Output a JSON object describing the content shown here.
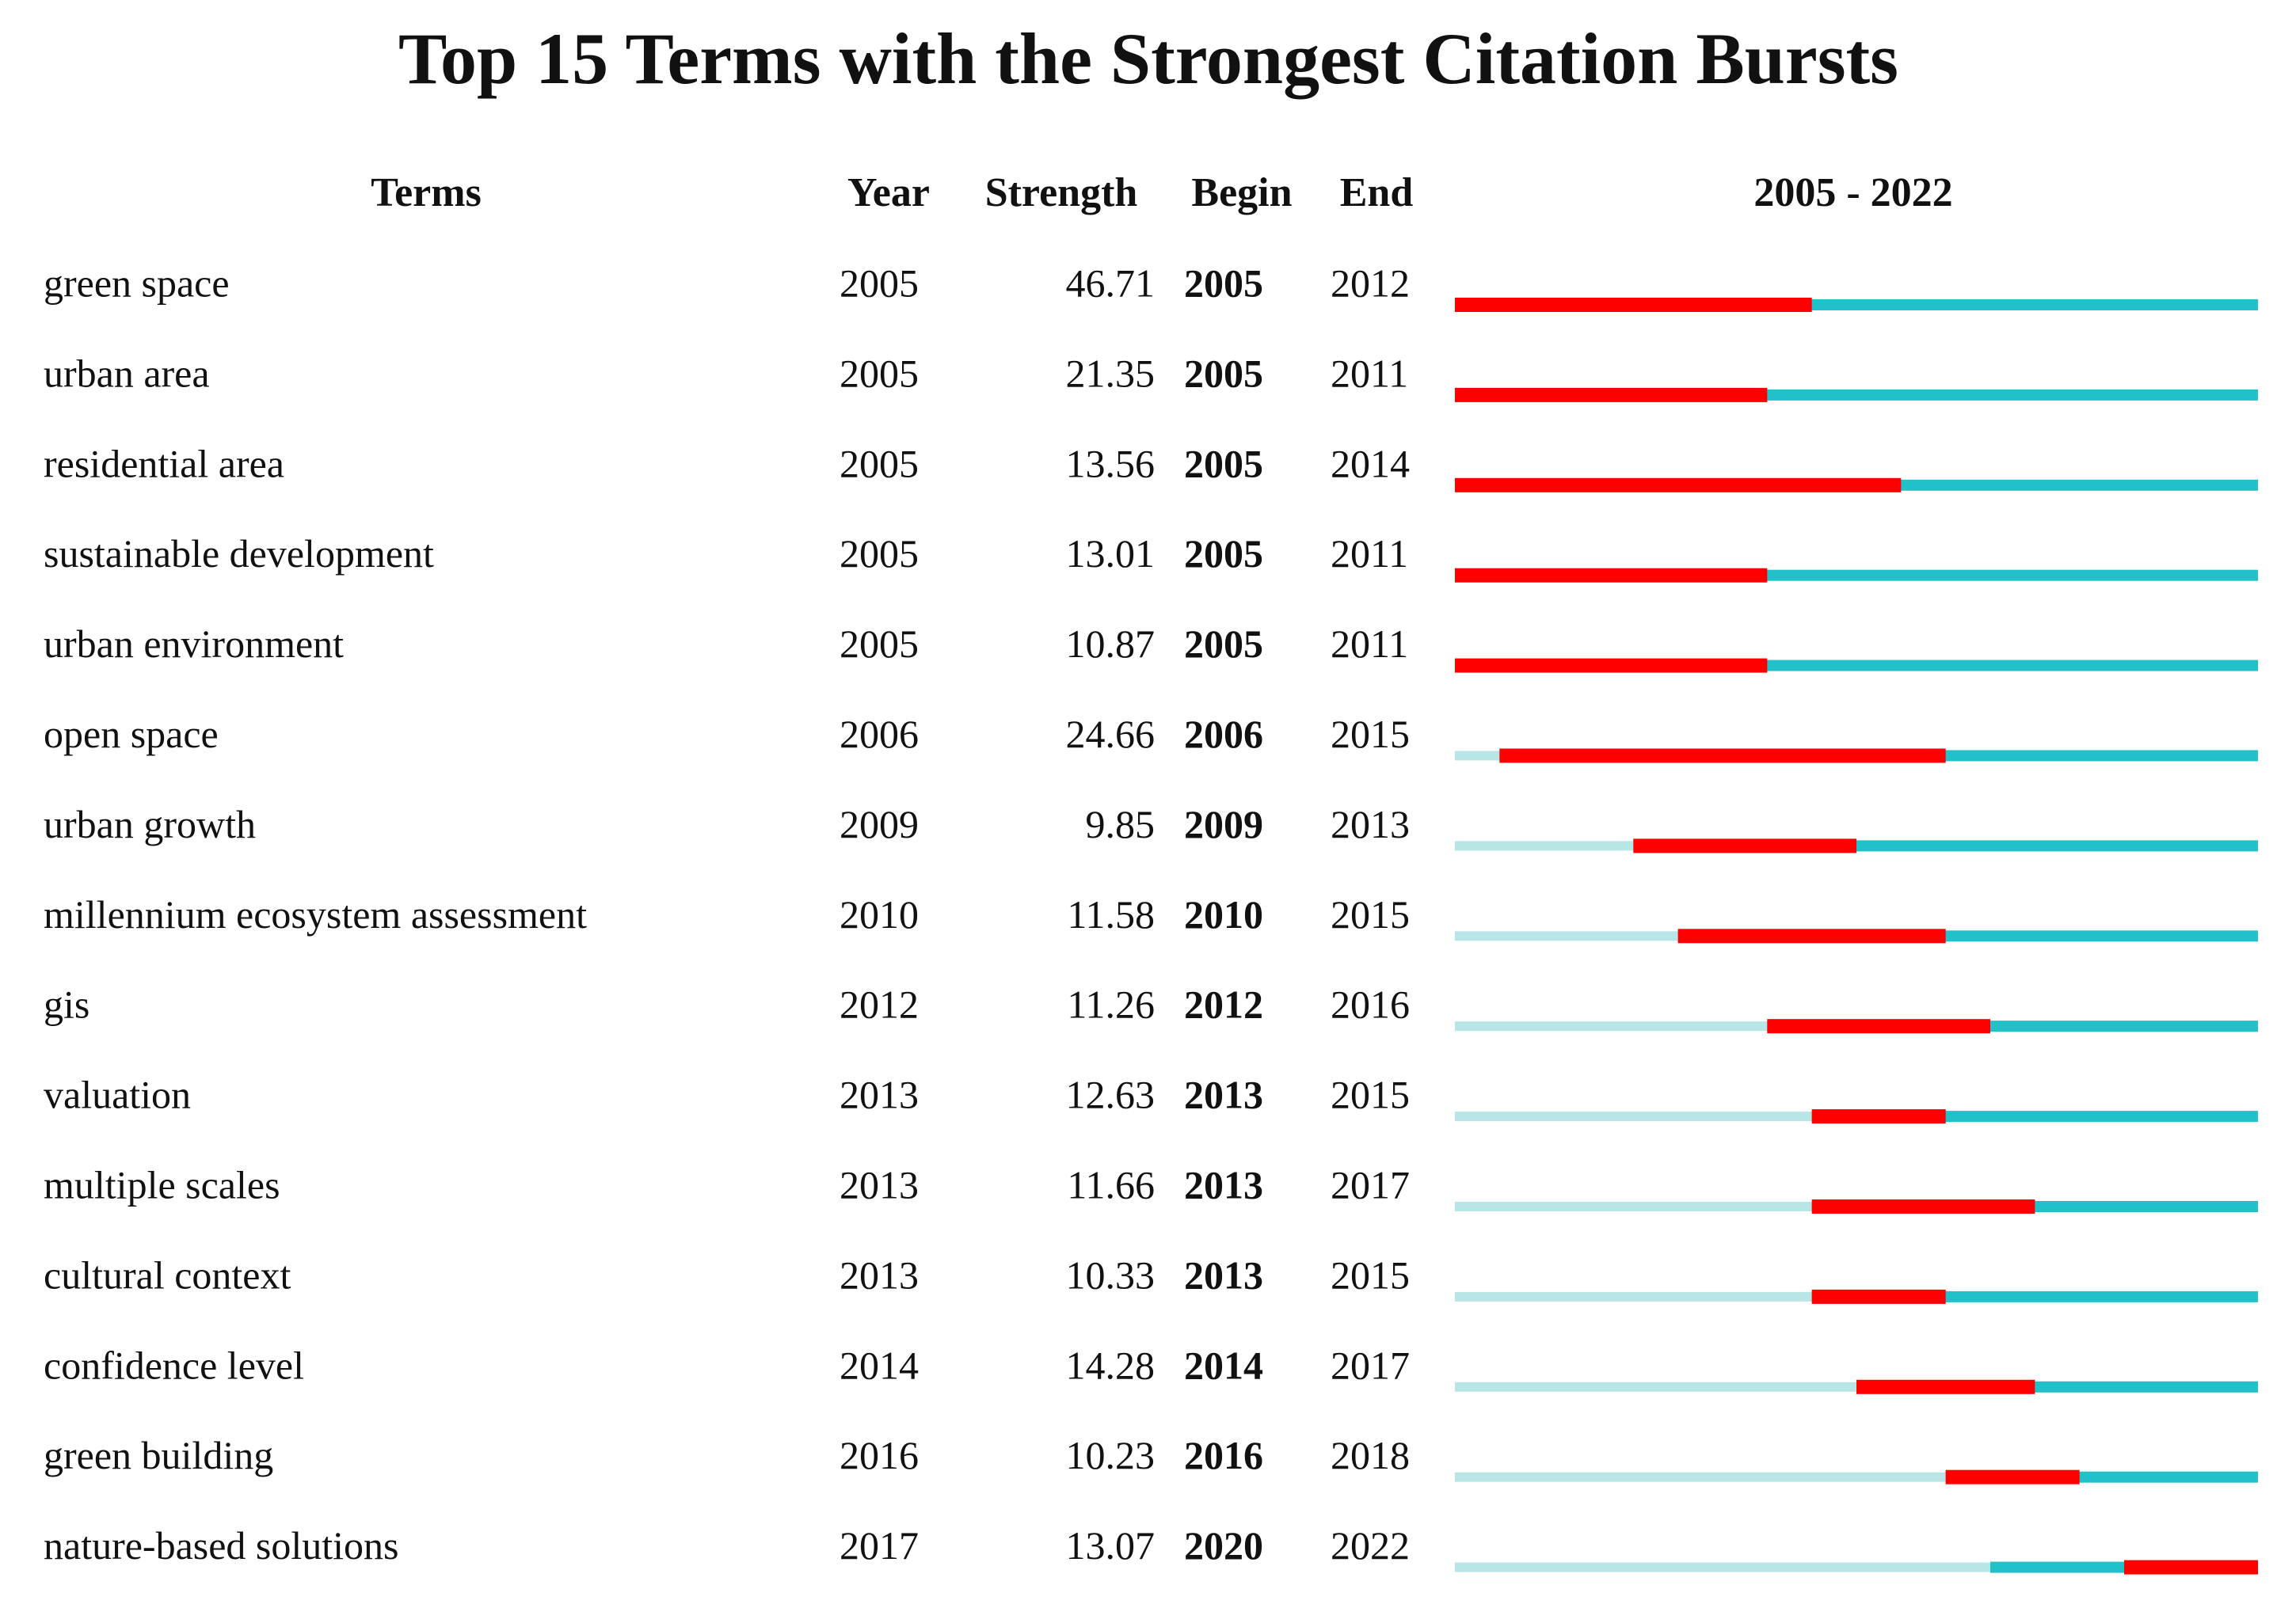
{
  "title": "Top 15 Terms with the Strongest Citation Bursts",
  "header": {
    "term": "Terms",
    "year": "Year",
    "strength": "Strength",
    "begin": "Begin",
    "end": "End",
    "range": "2005 - 2022"
  },
  "timeline": {
    "start": 2005,
    "end": 2022
  },
  "colors": {
    "before": "#b8e6e6",
    "active": "#22c0c8",
    "burst": "#ff0000"
  },
  "rows": [
    {
      "term": "green space",
      "year": 2005,
      "strength": 46.71,
      "begin": 2005,
      "end": 2012
    },
    {
      "term": "urban area",
      "year": 2005,
      "strength": 21.35,
      "begin": 2005,
      "end": 2011
    },
    {
      "term": "residential area",
      "year": 2005,
      "strength": 13.56,
      "begin": 2005,
      "end": 2014
    },
    {
      "term": "sustainable development",
      "year": 2005,
      "strength": 13.01,
      "begin": 2005,
      "end": 2011
    },
    {
      "term": "urban environment",
      "year": 2005,
      "strength": 10.87,
      "begin": 2005,
      "end": 2011
    },
    {
      "term": "open space",
      "year": 2006,
      "strength": 24.66,
      "begin": 2006,
      "end": 2015
    },
    {
      "term": "urban growth",
      "year": 2009,
      "strength": 9.85,
      "begin": 2009,
      "end": 2013
    },
    {
      "term": "millennium ecosystem assessment",
      "year": 2010,
      "strength": 11.58,
      "begin": 2010,
      "end": 2015
    },
    {
      "term": "gis",
      "year": 2012,
      "strength": 11.26,
      "begin": 2012,
      "end": 2016
    },
    {
      "term": "valuation",
      "year": 2013,
      "strength": 12.63,
      "begin": 2013,
      "end": 2015
    },
    {
      "term": "multiple scales",
      "year": 2013,
      "strength": 11.66,
      "begin": 2013,
      "end": 2017
    },
    {
      "term": "cultural context",
      "year": 2013,
      "strength": 10.33,
      "begin": 2013,
      "end": 2015
    },
    {
      "term": "confidence level",
      "year": 2014,
      "strength": 14.28,
      "begin": 2014,
      "end": 2017
    },
    {
      "term": "green building",
      "year": 2016,
      "strength": 10.23,
      "begin": 2016,
      "end": 2018
    },
    {
      "term": "nature-based solutions",
      "year": 2017,
      "strength": 13.07,
      "begin": 2020,
      "end": 2022
    }
  ]
}
